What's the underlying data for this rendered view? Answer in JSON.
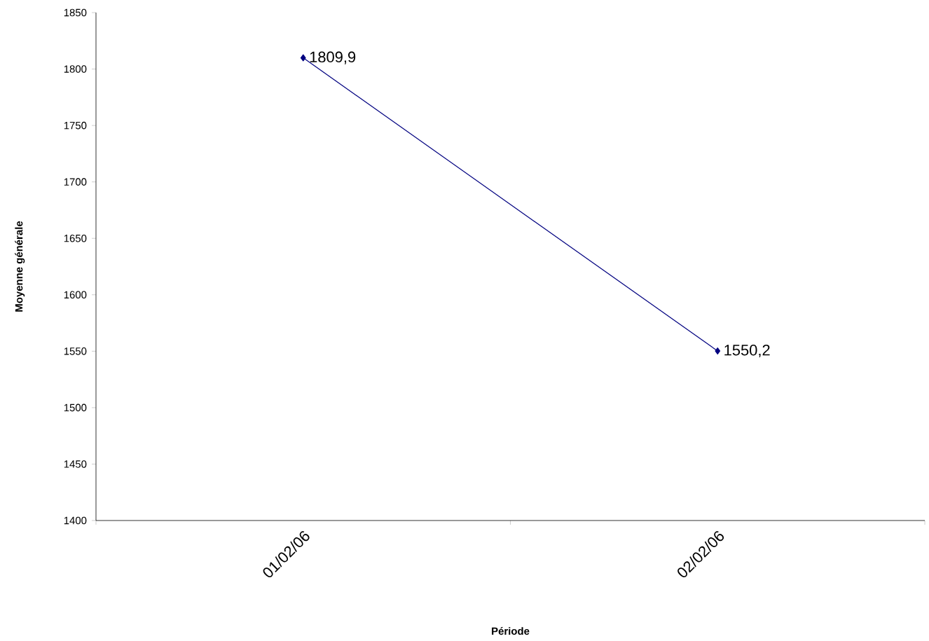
{
  "chart_data": {
    "type": "line",
    "xlabel": "Période",
    "ylabel": "Moyenne générale",
    "categories": [
      "01/02/06",
      "02/02/06"
    ],
    "series": [
      {
        "color": "#000080",
        "values": [
          1809.9,
          1550.2
        ],
        "value_labels": [
          "1809,9",
          "1550,2"
        ]
      }
    ],
    "ylim": [
      1400,
      1850
    ],
    "yticks": [
      1400,
      1450,
      1500,
      1550,
      1600,
      1650,
      1700,
      1750,
      1800,
      1850
    ],
    "marker": "diamond",
    "line_style": "solid"
  }
}
